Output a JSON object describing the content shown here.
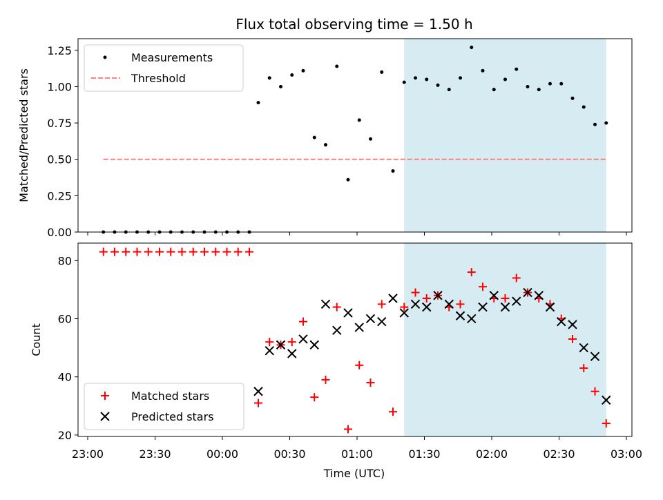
{
  "colors": {
    "measurement": "#000000",
    "threshold": "#ff7f7f",
    "matched": "#ff0000",
    "predicted": "#000000",
    "shade": "#add8e6"
  },
  "chart_data": [
    {
      "type": "scatter",
      "title": "Flux total observing time = 1.50 h",
      "ylabel": "Matched/Predicted stars",
      "ylim": [
        0,
        1.33
      ],
      "yticks": [
        "0.00",
        "0.25",
        "0.50",
        "0.75",
        "1.00",
        "1.25"
      ],
      "legend": {
        "position": "top-left",
        "entries": [
          "Measurements",
          "Threshold"
        ]
      },
      "shaded_range": [
        "01:21",
        "02:51"
      ],
      "threshold": {
        "name": "Threshold",
        "y": 0.5,
        "x": [
          "23:07",
          "02:51"
        ]
      },
      "series": [
        {
          "name": "Measurements",
          "marker": "dot",
          "x": [
            "23:07",
            "23:12",
            "23:17",
            "23:22",
            "23:27",
            "23:32",
            "23:37",
            "23:42",
            "23:47",
            "23:52",
            "23:57",
            "00:02",
            "00:07",
            "00:12",
            "00:16",
            "00:21",
            "00:26",
            "00:31",
            "00:36",
            "00:41",
            "00:46",
            "00:51",
            "00:56",
            "01:01",
            "01:06",
            "01:11",
            "01:16",
            "01:21",
            "01:26",
            "01:31",
            "01:36",
            "01:41",
            "01:46",
            "01:51",
            "01:56",
            "02:01",
            "02:06",
            "02:11",
            "02:16",
            "02:21",
            "02:26",
            "02:31",
            "02:36",
            "02:41",
            "02:46",
            "02:51"
          ],
          "y": [
            0,
            0,
            0,
            0,
            0,
            0,
            0,
            0,
            0,
            0,
            0,
            0,
            0,
            0,
            0.89,
            1.06,
            1.0,
            1.08,
            1.11,
            0.65,
            0.6,
            1.14,
            0.36,
            0.77,
            0.64,
            1.1,
            0.42,
            1.03,
            1.06,
            1.05,
            1.01,
            0.98,
            1.06,
            1.27,
            1.11,
            0.98,
            1.05,
            1.12,
            1.0,
            0.98,
            1.02,
            1.02,
            0.92,
            0.86,
            0.74,
            0.75
          ]
        }
      ]
    },
    {
      "type": "scatter",
      "xlabel": "Time (UTC)",
      "ylabel": "Count",
      "ylim": [
        19.5,
        86
      ],
      "yticks": [
        "20",
        "40",
        "60",
        "80"
      ],
      "xticks": [
        "23:00",
        "23:30",
        "00:00",
        "00:30",
        "01:00",
        "01:30",
        "02:00",
        "02:30",
        "03:00"
      ],
      "legend": {
        "position": "bottom-left",
        "entries": [
          "Matched stars",
          "Predicted stars"
        ]
      },
      "shaded_range": [
        "01:21",
        "02:51"
      ],
      "series": [
        {
          "name": "Matched stars",
          "marker": "plus",
          "x": [
            "23:07",
            "23:12",
            "23:17",
            "23:22",
            "23:27",
            "23:32",
            "23:37",
            "23:42",
            "23:47",
            "23:52",
            "23:57",
            "00:02",
            "00:07",
            "00:12",
            "00:16",
            "00:21",
            "00:26",
            "00:31",
            "00:36",
            "00:41",
            "00:46",
            "00:51",
            "00:56",
            "01:01",
            "01:06",
            "01:11",
            "01:16",
            "01:21",
            "01:26",
            "01:31",
            "01:36",
            "01:41",
            "01:46",
            "01:51",
            "01:56",
            "02:01",
            "02:06",
            "02:11",
            "02:16",
            "02:21",
            "02:26",
            "02:31",
            "02:36",
            "02:41",
            "02:46",
            "02:51"
          ],
          "y": [
            83,
            83,
            83,
            83,
            83,
            83,
            83,
            83,
            83,
            83,
            83,
            83,
            83,
            83,
            31,
            52,
            51,
            52,
            59,
            33,
            39,
            64,
            22,
            44,
            38,
            65,
            28,
            64,
            69,
            67,
            68,
            64,
            65,
            76,
            71,
            67,
            67,
            74,
            69,
            67,
            65,
            60,
            53,
            43,
            35,
            24
          ]
        },
        {
          "name": "Predicted stars",
          "marker": "x",
          "x": [
            "00:16",
            "00:21",
            "00:26",
            "00:31",
            "00:36",
            "00:41",
            "00:46",
            "00:51",
            "00:56",
            "01:01",
            "01:06",
            "01:11",
            "01:16",
            "01:21",
            "01:26",
            "01:31",
            "01:36",
            "01:41",
            "01:46",
            "01:51",
            "01:56",
            "02:01",
            "02:06",
            "02:11",
            "02:16",
            "02:21",
            "02:26",
            "02:31",
            "02:36",
            "02:41",
            "02:46",
            "02:51"
          ],
          "y": [
            35,
            49,
            51,
            48,
            53,
            51,
            65,
            56,
            62,
            57,
            60,
            59,
            67,
            62,
            65,
            64,
            68,
            65,
            61,
            60,
            64,
            68,
            64,
            66,
            69,
            68,
            64,
            59,
            58,
            50,
            47,
            32
          ]
        }
      ]
    }
  ]
}
